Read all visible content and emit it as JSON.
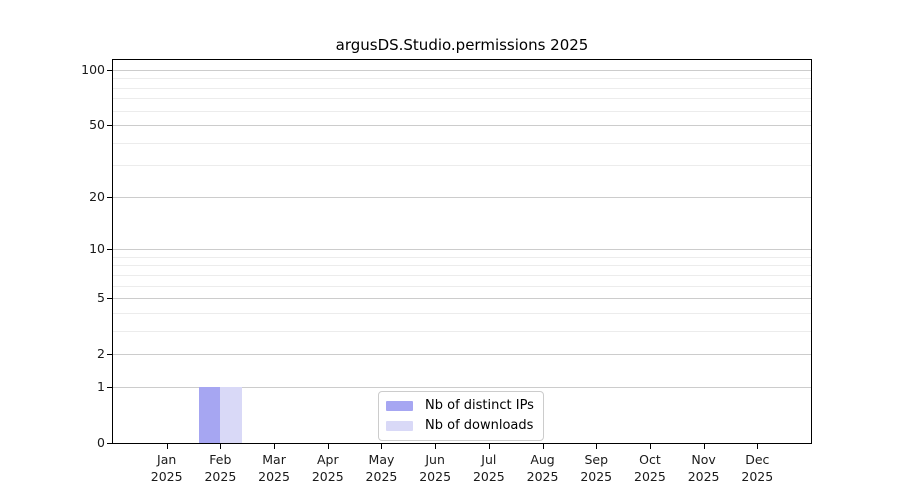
{
  "chart_data": {
    "type": "bar",
    "title": "argusDS.Studio.permissions 2025",
    "categories": [
      "Jan 2025",
      "Feb 2025",
      "Mar 2025",
      "Apr 2025",
      "May 2025",
      "Jun 2025",
      "Jul 2025",
      "Aug 2025",
      "Sep 2025",
      "Oct 2025",
      "Nov 2025",
      "Dec 2025"
    ],
    "series": [
      {
        "name": "Nb of distinct IPs",
        "color": "#a6a6f2",
        "values": [
          0,
          1,
          0,
          0,
          0,
          0,
          0,
          0,
          0,
          0,
          0,
          0
        ]
      },
      {
        "name": "Nb of downloads",
        "color": "#d9d9f7",
        "values": [
          0,
          1,
          0,
          0,
          0,
          0,
          0,
          0,
          0,
          0,
          0,
          0
        ]
      }
    ],
    "xlabel": "",
    "ylabel": "",
    "y_axis": {
      "scale": "log1p",
      "major_ticks": [
        0,
        1,
        2,
        5,
        10,
        20,
        50,
        100
      ],
      "minor_ticks": [
        3,
        4,
        6,
        7,
        8,
        9,
        30,
        40,
        60,
        70,
        80,
        90
      ],
      "range": [
        0,
        115
      ]
    },
    "grid": true,
    "legend": {
      "position": "lower center"
    },
    "colors": {
      "major_grid": "#cccccc",
      "minor_grid": "#ececec",
      "axis": "#000000",
      "tick_text": "#1a1a1a"
    }
  }
}
